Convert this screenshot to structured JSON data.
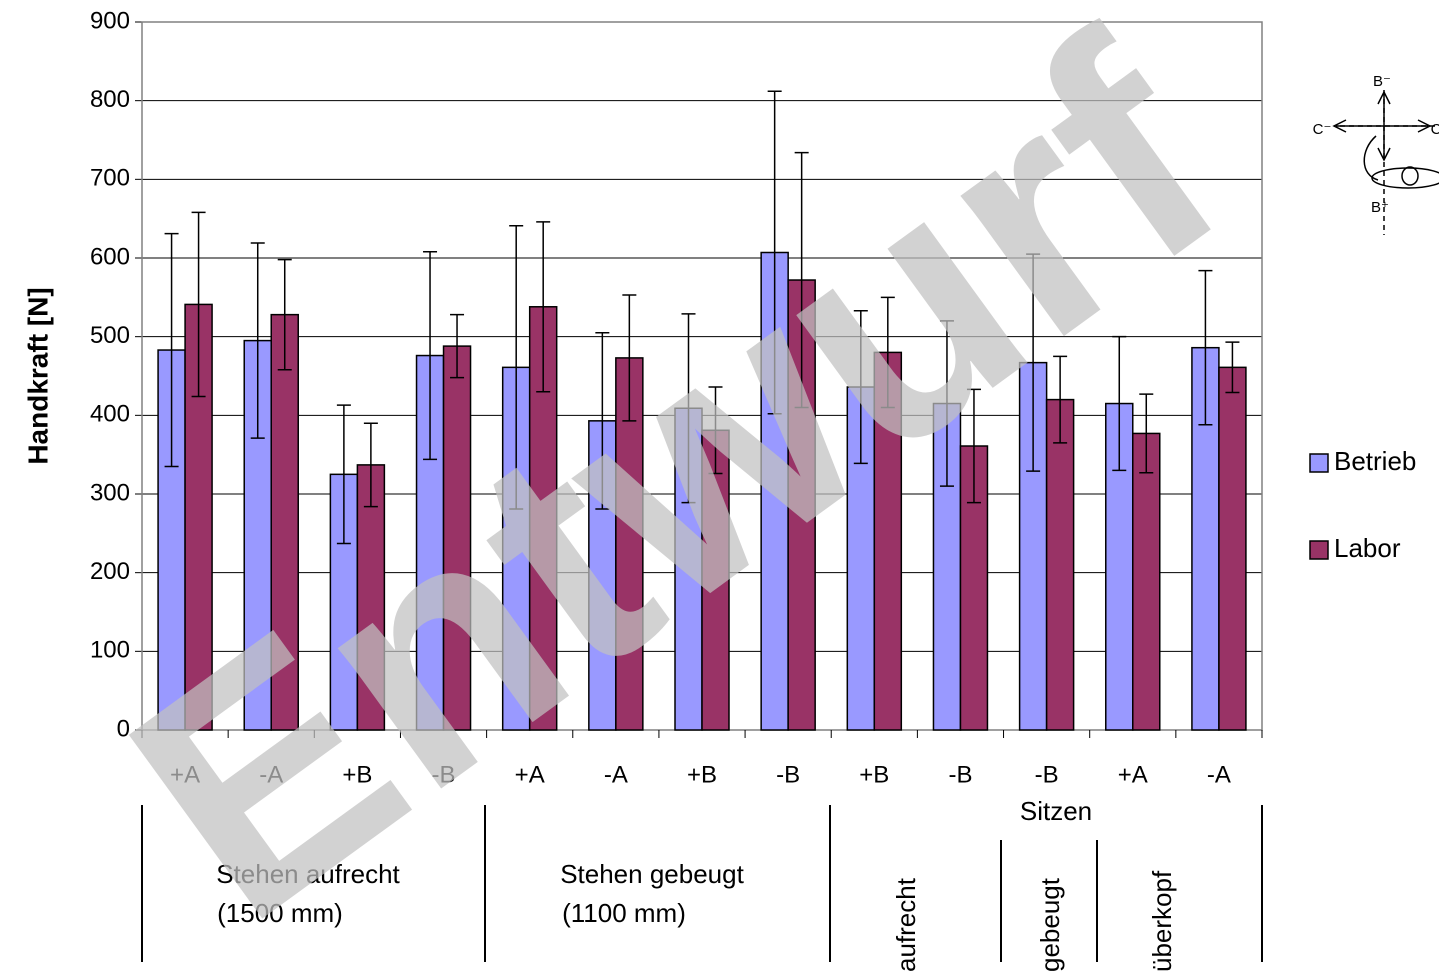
{
  "chart_data": {
    "type": "bar",
    "y_label": "Handkraft [N]",
    "watermark": "Entwurf",
    "categories": [
      "+A",
      "-A",
      "+B",
      "-B",
      "+A",
      "-A",
      "+B",
      "-B",
      "+B",
      "-B",
      "-B",
      "+A",
      "-A"
    ],
    "series": [
      {
        "name": "Betrieb",
        "color": "#9999ff",
        "values": [
          483,
          495,
          325,
          476,
          461,
          393,
          409,
          607,
          436,
          415,
          467,
          415,
          486
        ],
        "errors": [
          148,
          124,
          88,
          132,
          180,
          112,
          120,
          205,
          97,
          105,
          138,
          85,
          98
        ]
      },
      {
        "name": "Labor",
        "color": "#993366",
        "values": [
          541,
          528,
          337,
          488,
          538,
          473,
          381,
          572,
          480,
          361,
          420,
          377,
          461
        ],
        "errors": [
          117,
          70,
          53,
          40,
          108,
          80,
          55,
          162,
          70,
          72,
          55,
          50,
          32
        ]
      }
    ],
    "groups": [
      {
        "label": [
          "Stehen aufrecht",
          "(1500 mm)"
        ]
      },
      {
        "label": [
          "Stehen gebeugt",
          "(1100 mm)"
        ]
      },
      {
        "label": [
          "Sitzen"
        ],
        "subgroups": [
          "aufrecht",
          "gebeugt",
          "überkopf"
        ]
      }
    ],
    "ylim": [
      0,
      900
    ],
    "yticks": [
      0,
      100,
      200,
      300,
      400,
      500,
      600,
      700,
      800,
      900
    ],
    "grid": true,
    "diagram_labels": [
      "B⁻",
      "C⁻",
      "B⁺",
      "C"
    ]
  }
}
